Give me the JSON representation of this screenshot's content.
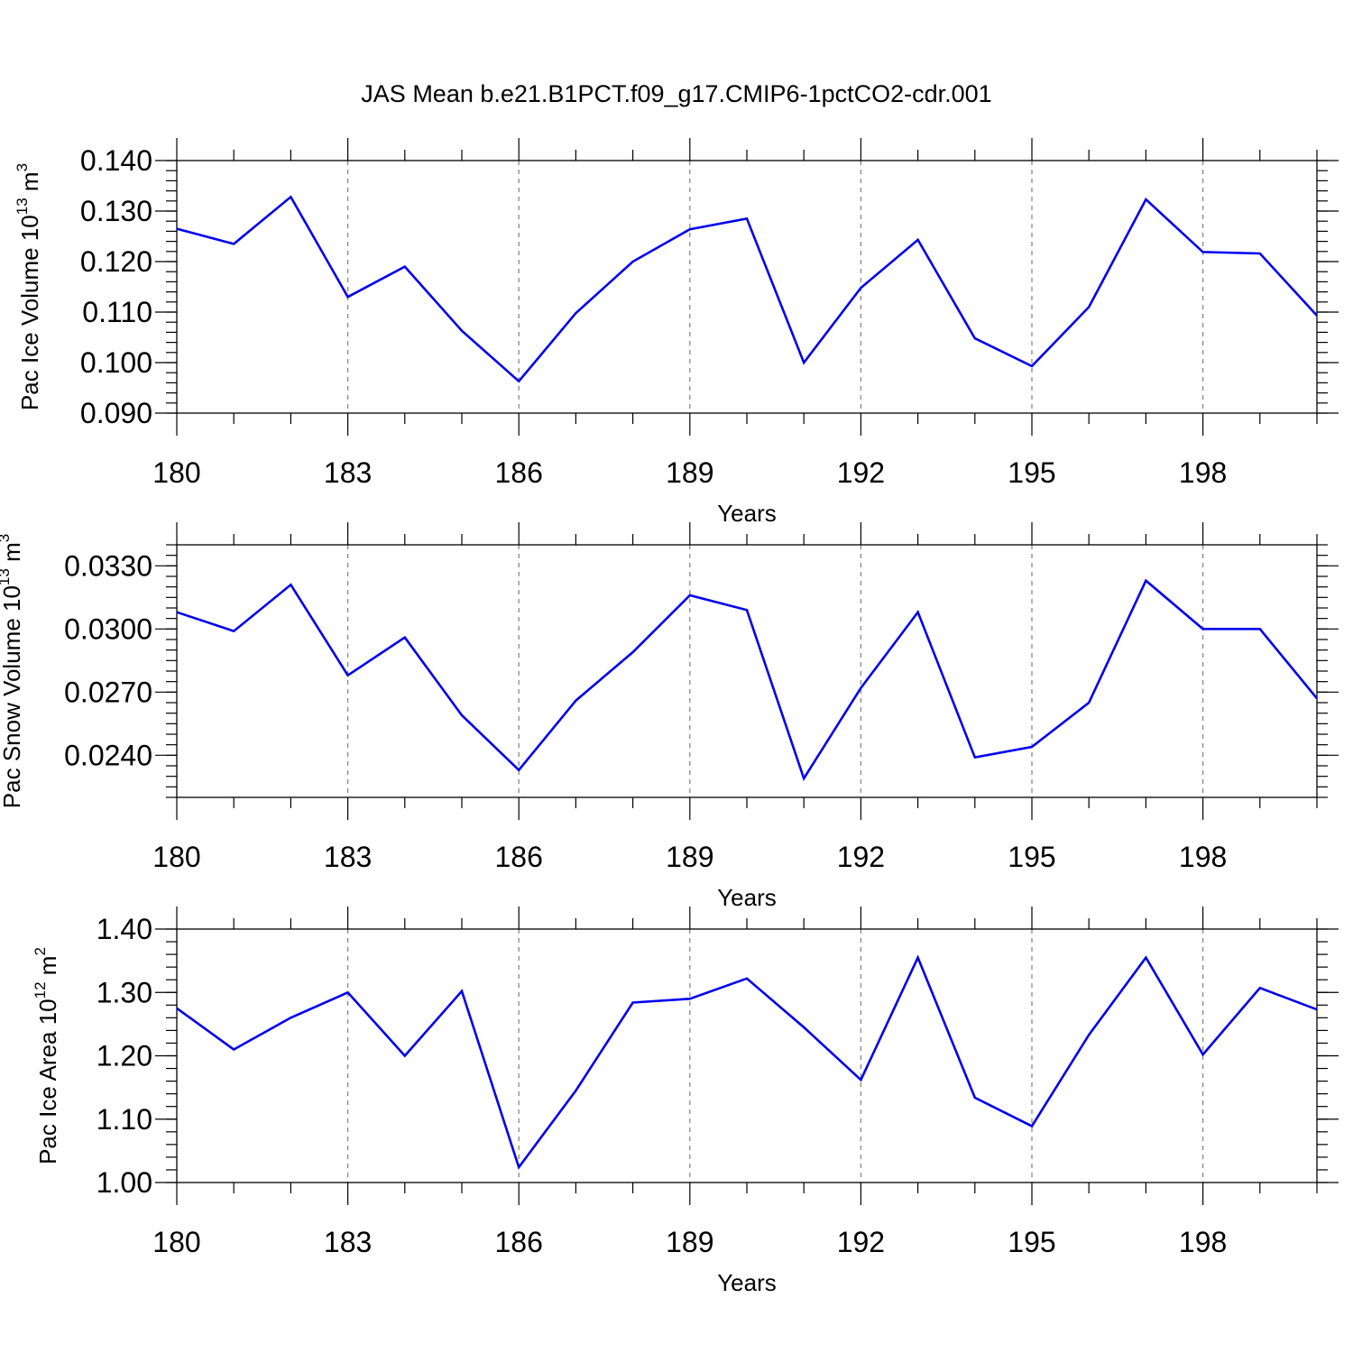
{
  "title": "JAS Mean b.e21.B1PCT.f09_g17.CMIP6-1pctCO2-cdr.001",
  "chart_data": [
    {
      "type": "line",
      "xlabel": "Years",
      "ylabel_text": "Pac Ice Volume 10",
      "ylabel_exp": "13",
      "ylabel_unit": " m",
      "ylabel_unit_exp": "3",
      "xlim": [
        180,
        200
      ],
      "ylim": [
        0.09,
        0.14
      ],
      "x_ticks": [
        180,
        183,
        186,
        189,
        192,
        195,
        198
      ],
      "x_tick_labels": [
        "180",
        "183",
        "186",
        "189",
        "192",
        "195",
        "198"
      ],
      "y_ticks": [
        0.09,
        0.1,
        0.11,
        0.12,
        0.13,
        0.14
      ],
      "y_tick_labels": [
        "0.090",
        "0.100",
        "0.110",
        "0.120",
        "0.130",
        "0.140"
      ],
      "y_minor_step": 0.002,
      "x": [
        180,
        181,
        182,
        183,
        184,
        185,
        186,
        187,
        188,
        189,
        190,
        191,
        192,
        193,
        194,
        195,
        196,
        197,
        198,
        199,
        200
      ],
      "values": [
        0.1265,
        0.1235,
        0.1328,
        0.113,
        0.119,
        0.1063,
        0.0963,
        0.1098,
        0.12,
        0.1264,
        0.1285,
        0.1,
        0.1148,
        0.1243,
        0.1048,
        0.0993,
        0.111,
        0.1323,
        0.1219,
        0.1216,
        0.1093
      ],
      "line_color": "#0000f0",
      "grid_x": true
    },
    {
      "type": "line",
      "xlabel": "Years",
      "ylabel_text": "Pac Snow Volume 10",
      "ylabel_exp": "13",
      "ylabel_unit": " m",
      "ylabel_unit_exp": "3",
      "xlim": [
        180,
        200
      ],
      "ylim": [
        0.022,
        0.034
      ],
      "x_ticks": [
        180,
        183,
        186,
        189,
        192,
        195,
        198
      ],
      "x_tick_labels": [
        "180",
        "183",
        "186",
        "189",
        "192",
        "195",
        "198"
      ],
      "y_ticks": [
        0.024,
        0.027,
        0.03,
        0.033
      ],
      "y_tick_labels": [
        "0.0240",
        "0.0270",
        "0.0300",
        "0.0330"
      ],
      "y_minor_step": 0.0005,
      "x": [
        180,
        181,
        182,
        183,
        184,
        185,
        186,
        187,
        188,
        189,
        190,
        191,
        192,
        193,
        194,
        195,
        196,
        197,
        198,
        199,
        200
      ],
      "values": [
        0.0308,
        0.0299,
        0.0321,
        0.0278,
        0.0296,
        0.0259,
        0.0233,
        0.0266,
        0.0289,
        0.0316,
        0.0309,
        0.0229,
        0.0272,
        0.0308,
        0.0239,
        0.0244,
        0.0265,
        0.0323,
        0.03,
        0.03,
        0.0267
      ],
      "line_color": "#0000f0",
      "grid_x": true
    },
    {
      "type": "line",
      "xlabel": "Years",
      "ylabel_text": "Pac Ice Area 10",
      "ylabel_exp": "12",
      "ylabel_unit": " m",
      "ylabel_unit_exp": "2",
      "xlim": [
        180,
        200
      ],
      "ylim": [
        1.0,
        1.4
      ],
      "x_ticks": [
        180,
        183,
        186,
        189,
        192,
        195,
        198
      ],
      "x_tick_labels": [
        "180",
        "183",
        "186",
        "189",
        "192",
        "195",
        "198"
      ],
      "y_ticks": [
        1.0,
        1.1,
        1.2,
        1.3,
        1.4
      ],
      "y_tick_labels": [
        "1.00",
        "1.10",
        "1.20",
        "1.30",
        "1.40"
      ],
      "y_minor_step": 0.02,
      "x": [
        180,
        181,
        182,
        183,
        184,
        185,
        186,
        187,
        188,
        189,
        190,
        191,
        192,
        193,
        194,
        195,
        196,
        197,
        198,
        199,
        200
      ],
      "values": [
        1.275,
        1.21,
        1.26,
        1.3,
        1.2,
        1.302,
        1.024,
        1.145,
        1.284,
        1.29,
        1.322,
        1.245,
        1.162,
        1.355,
        1.134,
        1.089,
        1.233,
        1.355,
        1.202,
        1.307,
        1.273
      ],
      "line_color": "#0000f0",
      "grid_x": true
    }
  ]
}
